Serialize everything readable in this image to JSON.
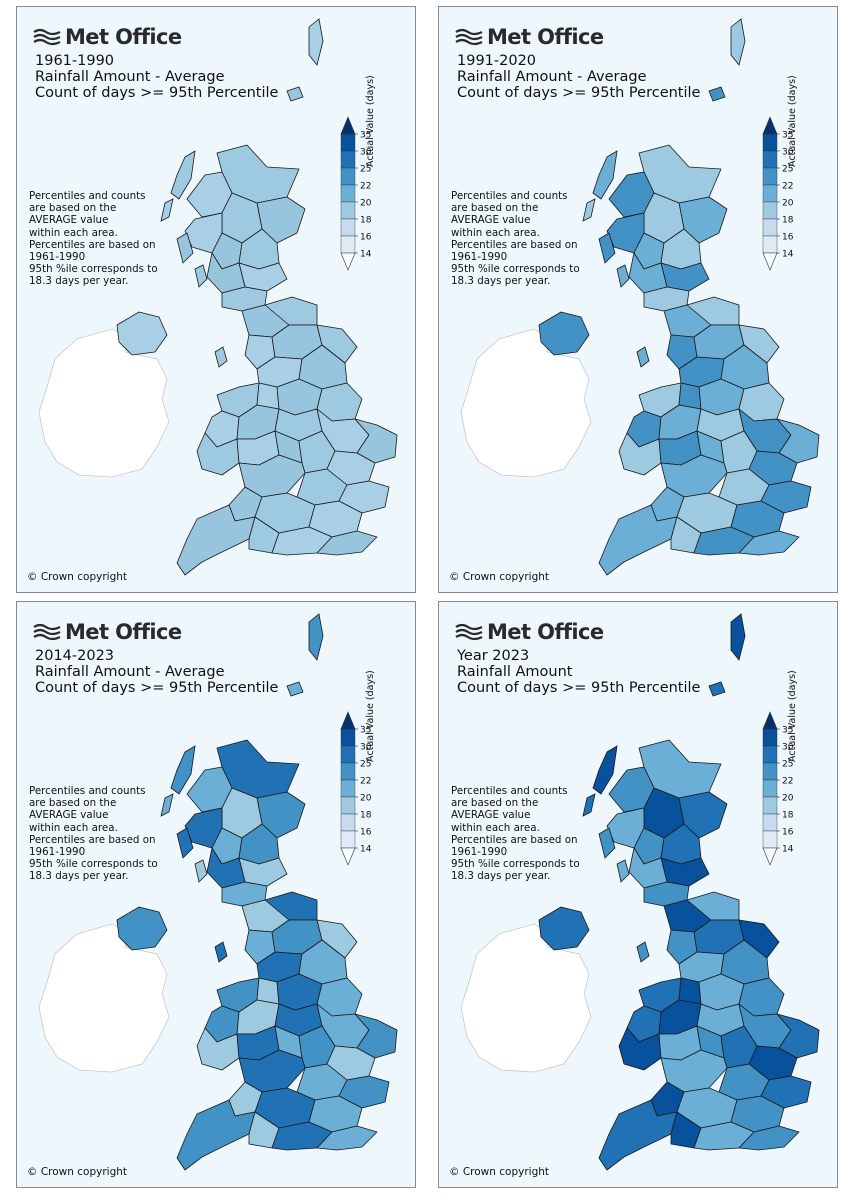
{
  "panels": [
    {
      "logo": "Met Office",
      "period": "1961-1990",
      "line2": "Rainfall Amount - Average",
      "line3": "Count of days >= 95th Percentile",
      "level": 1
    },
    {
      "logo": "Met Office",
      "period": "1991-2020",
      "line2": "Rainfall Amount - Average",
      "line3": "Count of days >= 95th Percentile",
      "level": 2
    },
    {
      "logo": "Met Office",
      "period": "2014-2023",
      "line2": "Rainfall Amount - Average",
      "line3": "Count of days >= 95th Percentile",
      "level": 3
    },
    {
      "logo": "Met Office",
      "period": "Year 2023",
      "line2": "Rainfall Amount",
      "line3": "Count of days >= 95th Percentile",
      "level": 4
    }
  ],
  "note_lines": [
    "Percentiles and counts",
    "are based on the",
    "AVERAGE value",
    "within each area.",
    "Percentiles are based on",
    "1961-1990",
    "95th %ile corresponds to",
    "18.3 days per year."
  ],
  "copyright": "© Crown copyright",
  "colorbar": {
    "label": "Actual Value (days)",
    "ticks": [
      "35",
      "30",
      "25",
      "22",
      "20",
      "18",
      "16",
      "14"
    ],
    "colors": [
      "#08306b",
      "#08519c",
      "#2171b5",
      "#4292c6",
      "#6baed6",
      "#9ecae1",
      "#c6dbef",
      "#deebf7",
      "#f7fbff"
    ]
  },
  "region_palette": {
    "level1": [
      "#9ecae1",
      "#a8cfe6",
      "#98c5de"
    ],
    "level2": [
      "#6baed6",
      "#9ecae1",
      "#4292c6"
    ],
    "level3": [
      "#4292c6",
      "#6baed6",
      "#2171b5",
      "#9ecae1"
    ],
    "level4": [
      "#08519c",
      "#2171b5",
      "#4292c6",
      "#6baed6"
    ]
  }
}
